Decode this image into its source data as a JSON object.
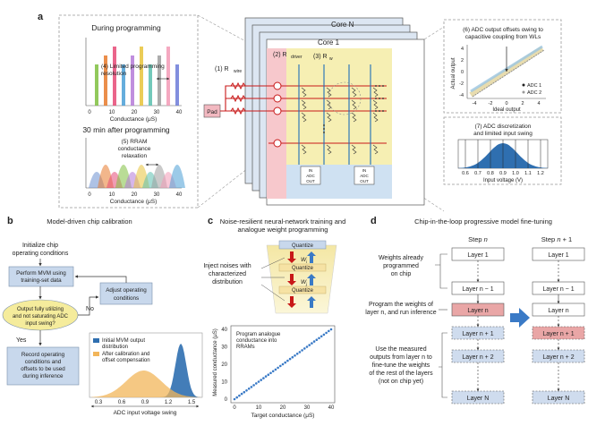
{
  "panel_labels": {
    "a": "a",
    "b": "b",
    "c": "c",
    "d": "d"
  },
  "panel_a": {
    "hist_top": {
      "title": "During programming",
      "note_line1": "(4) Limited programming",
      "note_line2": "resolution",
      "xlabel": "Conductance (μS)",
      "ticks": [
        "0",
        "10",
        "20",
        "30",
        "40"
      ]
    },
    "hist_bottom": {
      "title": "30 min after programming",
      "note_line1": "(5) RRAM",
      "note_line2": "conductance",
      "note_line3": "relaxation",
      "xlabel": "Conductance (μS)",
      "ticks": [
        "0",
        "10",
        "20",
        "30",
        "40"
      ]
    },
    "core_n": "Core N",
    "core_1": "Core 1",
    "pad": "Pad",
    "r_wire_label": "(1) R",
    "r_wire_sub": "wire",
    "r_driver_label": "(2) R",
    "r_driver_sub": "driver",
    "r_w_label": "(3) R",
    "r_w_sub": "w",
    "adc_labels": [
      "IN",
      "IN"
    ],
    "adc_texts": [
      "ADC",
      "ADC"
    ],
    "adc_out": [
      "OUT",
      "OUT"
    ],
    "adc_offset": {
      "title_line1": "(6) ADC output offsets owing to",
      "title_line2": "capacitive coupling from WLs",
      "ylabel": "Actual output",
      "xlabel": "Ideal output",
      "yticks": [
        "4",
        "2",
        "0",
        "-2",
        "-4"
      ],
      "xticks": [
        "-4",
        "-2",
        "0",
        "2",
        "4"
      ],
      "legend": [
        "ADC 1",
        "ADC 2"
      ]
    },
    "adc_discrete": {
      "title_line1": "(7) ADC discretization",
      "title_line2": "and limited input swing",
      "ticks": [
        "0.6",
        "0.7",
        "0.8",
        "0.9",
        "1.0",
        "1.1",
        "1.2"
      ],
      "xlabel": "Input voltage (V)"
    }
  },
  "panel_b": {
    "title": "Model-driven chip calibration",
    "init_line1": "Initialize chip",
    "init_line2": "operating conditions",
    "mvm_line1": "Perform MVM using",
    "mvm_line2": "training-set data",
    "adjust_line1": "Adjust operating",
    "adjust_line2": "conditions",
    "decision_line1": "Output fully utilizing",
    "decision_line2": "and not saturating ADC",
    "decision_line3": "input swing?",
    "no": "No",
    "yes": "Yes",
    "record_line1": "Record operating",
    "record_line2": "conditions and",
    "record_line3": "offsets to be used",
    "record_line4": "during inference",
    "legend_initial_line1": "Initial MVM output",
    "legend_initial_line2": "distribution",
    "legend_after_line1": "After calibration and",
    "legend_after_line2": "offset compensation",
    "ticks": [
      "0.3",
      "0.6",
      "0.9",
      "1.2",
      "1.5"
    ],
    "xlabel": "ADC input voltage swing"
  },
  "panel_c": {
    "title_line1": "Noise-resilient neural-network training and",
    "title_line2": "analogue weight programming",
    "quantize": [
      "Quantize",
      "Quantize",
      "Quantize"
    ],
    "inject_line1": "Inject noises with",
    "inject_line2": "characterized",
    "inject_line3": "distribution",
    "w_labels": [
      "W",
      "W"
    ],
    "w_subs": [
      "i",
      "j"
    ],
    "chart": {
      "annot_line1": "Program analogue",
      "annot_line2": "conductance into",
      "annot_line3": "RRAMs",
      "ylabel": "Measured conductance (μS)",
      "xlabel": "Target conductance (μS)",
      "xticks": [
        "0",
        "10",
        "20",
        "30",
        "40"
      ],
      "yticks": [
        "40",
        "30",
        "20",
        "10",
        "0"
      ]
    }
  },
  "panel_d": {
    "title": "Chip-in-the-loop progressive model fine-tuning",
    "step_n_prefix": "Step ",
    "step_n_var": "n",
    "step_n1_prefix": "Step ",
    "step_n1_var": "n",
    "step_n1_suffix": " + 1",
    "weights_line1": "Weights already",
    "weights_line2": "programmed",
    "weights_line3": "on chip",
    "program_line1": "Program the weights of",
    "program_line2": "layer n, and run inference",
    "use_line1": "Use the measured",
    "use_line2": "outputs from layer n to",
    "use_line3": "fine-tune the weights",
    "use_line4": "of the rest of the layers",
    "use_line5": "(not on chip yet)",
    "col_n": [
      "Layer 1",
      "Layer n − 1",
      "Layer n",
      "Layer n + 1",
      "Layer n + 2",
      "Layer N"
    ],
    "col_n1": [
      "Layer 1",
      "Layer n − 1",
      "Layer n",
      "Layer n + 1",
      "Layer n + 2",
      "Layer N"
    ]
  },
  "colors": {
    "blue_box": "#c8d8ec",
    "yellow_box": "#f6efb3",
    "pink": "#f2b8c0",
    "layer_red": "#e9a6a6",
    "accent_blue": "#3a7ac6"
  }
}
